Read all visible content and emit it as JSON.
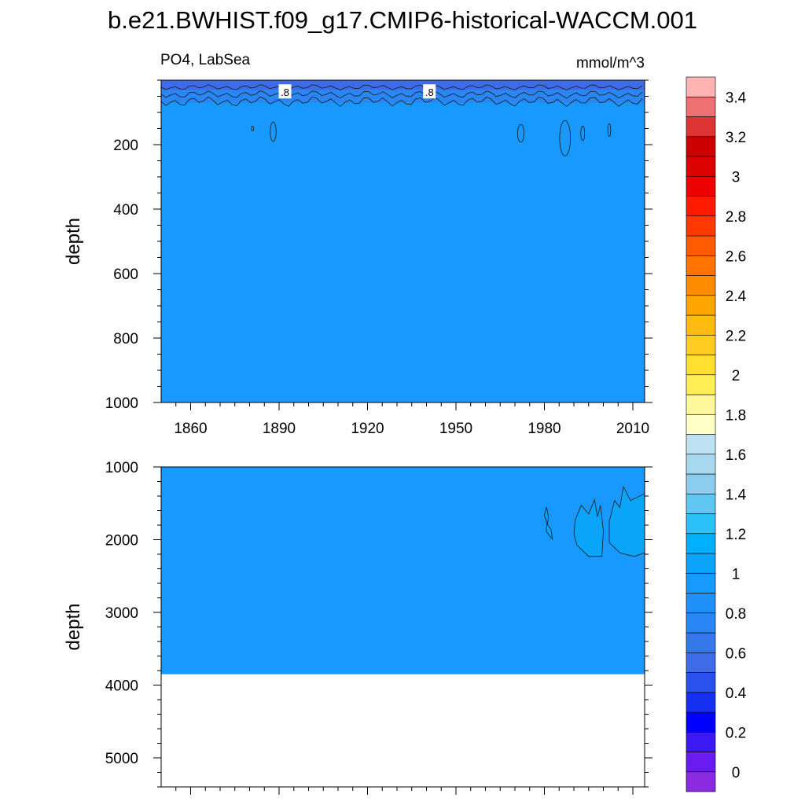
{
  "page": {
    "title": "b.e21.BWHIST.f09_g17.CMIP6-historical-WACCM.001",
    "left_string": "PO4, LabSea",
    "right_string": "mmol/m^3"
  },
  "chart_data": {
    "type": "contour",
    "variable": "PO4",
    "region": "LabSea",
    "units": "mmol/m^3",
    "x_range": [
      1850,
      2014
    ],
    "x_ticks": [
      1860,
      1890,
      1920,
      1950,
      1980,
      2010
    ],
    "x_tick_labels": [
      "1860",
      "1890",
      "1920",
      "1950",
      "1980",
      "2010"
    ],
    "contour_line_labels": [
      ".8",
      ".8"
    ],
    "panels": [
      {
        "name": "upper",
        "ylabel": "depth",
        "ylim": [
          0,
          1000
        ],
        "y_ticks": [
          200,
          400,
          600,
          800,
          1000
        ],
        "y_tick_labels": [
          "200",
          "400",
          "600",
          "800",
          "1000"
        ],
        "background_value": 0.9,
        "regions": [
          {
            "value": 0.7,
            "color": "#3e6be8",
            "desc": "surface layer",
            "x": [
              1850,
              2014
            ],
            "y": [
              0,
              30
            ]
          },
          {
            "value": 0.8,
            "color": "#2a86f5",
            "desc": "upper band",
            "x": [
              1850,
              2014
            ],
            "y": [
              30,
              70
            ]
          }
        ],
        "pockets": [
          {
            "x": 1881,
            "y": 150,
            "w": 0.3,
            "h": 15
          },
          {
            "x": 1888,
            "y": 160,
            "w": 1.2,
            "h": 60
          },
          {
            "x": 1972,
            "y": 165,
            "w": 1.3,
            "h": 55
          },
          {
            "x": 1987,
            "y": 180,
            "w": 2.2,
            "h": 110
          },
          {
            "x": 1993,
            "y": 165,
            "w": 0.8,
            "h": 45
          },
          {
            "x": 2002,
            "y": 155,
            "w": 0.6,
            "h": 40
          }
        ]
      },
      {
        "name": "lower",
        "ylabel": "depth",
        "ylim": [
          1000,
          5400
        ],
        "y_ticks": [
          1000,
          2000,
          3000,
          4000,
          5000
        ],
        "y_tick_labels": [
          "1000",
          "2000",
          "3000",
          "4000",
          "5000"
        ],
        "fill_bottom": 3850,
        "background_value": 0.9,
        "pockets": [
          {
            "value": 1.05,
            "color": "#0aa5fb",
            "x": [
              1980,
              1983
            ],
            "y": [
              1550,
              1990
            ]
          },
          {
            "value": 1.05,
            "color": "#0aa5fb",
            "x": [
              1990,
              2000
            ],
            "y": [
              1450,
              2230
            ]
          },
          {
            "value": 1.05,
            "color": "#0aa5fb",
            "x": [
              2002,
              2014
            ],
            "y": [
              1270,
              2230
            ]
          }
        ]
      }
    ],
    "colorbar": {
      "labels": [
        "0",
        "0.2",
        "0.4",
        "0.6",
        "0.8",
        "1",
        "1.2",
        "1.4",
        "1.6",
        "1.8",
        "2",
        "2.2",
        "2.4",
        "2.6",
        "2.8",
        "3",
        "3.2",
        "3.4"
      ],
      "colors": [
        "#8a2be2",
        "#6a1cf0",
        "#3a1af0",
        "#0000ff",
        "#1530f0",
        "#2a50ee",
        "#3e6be8",
        "#3578ea",
        "#2a86f5",
        "#1f90f8",
        "#1799ff",
        "#0aa5fb",
        "#00b0ff",
        "#2cc0f8",
        "#5fc8f2",
        "#8ccdee",
        "#a8d8f0",
        "#bde1f2",
        "#ffffc8",
        "#fff89a",
        "#ffee55",
        "#ffe030",
        "#ffcc22",
        "#ffbb11",
        "#ffa500",
        "#ff8c00",
        "#ff7300",
        "#ff5a00",
        "#ff3a00",
        "#ff1a00",
        "#ee0000",
        "#dd0000",
        "#cc0000",
        "#dd3333",
        "#ee7070",
        "#ffb4b4"
      ]
    }
  }
}
